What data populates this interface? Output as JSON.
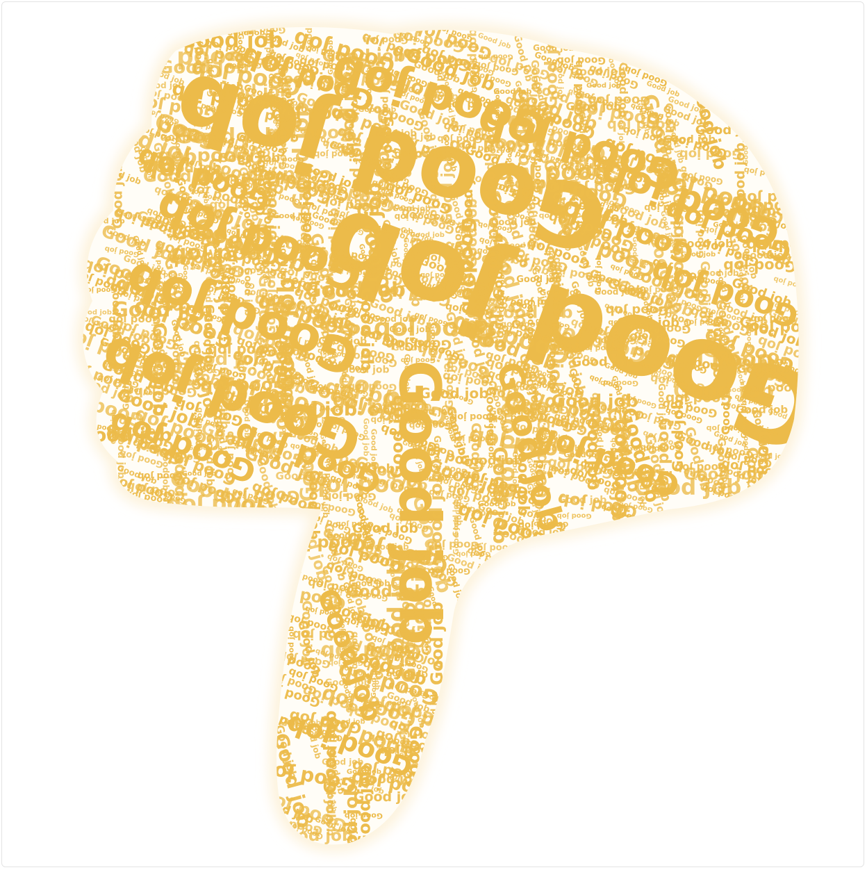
{
  "word": "Good job",
  "colors": {
    "word": "#ecbb4a",
    "halo": "#fdf3dd",
    "background": "#ffffff",
    "border": "#e3e3e3"
  },
  "shape": "thumbs-down-icon"
}
